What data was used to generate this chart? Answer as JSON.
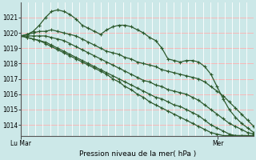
{
  "title": "Pression niveau de la mer( hPa )",
  "bg_color": "#cce8e8",
  "plot_bg": "#cce8e8",
  "grid_color_v": "#ffffff",
  "grid_color_h": "#ffb0b0",
  "line_color": "#2d5a2d",
  "ylim": [
    1013.3,
    1022.0
  ],
  "yticks": [
    1014,
    1015,
    1016,
    1017,
    1018,
    1019,
    1020,
    1021
  ],
  "xlabel_left": "Lu Mar",
  "xlabel_right": "Mer",
  "series": [
    [
      1019.8,
      1019.9,
      1020.1,
      1020.5,
      1021.0,
      1021.4,
      1021.5,
      1021.4,
      1021.2,
      1020.9,
      1020.5,
      1020.3,
      1020.1,
      1019.9,
      1020.2,
      1020.4,
      1020.5,
      1020.5,
      1020.4,
      1020.2,
      1020.0,
      1019.7,
      1019.5,
      1019.0,
      1018.3,
      1018.2,
      1018.1,
      1018.2,
      1018.2,
      1018.1,
      1017.8,
      1017.3,
      1016.5,
      1015.7,
      1015.0,
      1014.5,
      1014.1,
      1013.8,
      1013.5
    ],
    [
      1019.8,
      1019.9,
      1020.0,
      1020.1,
      1020.1,
      1020.2,
      1020.1,
      1020.0,
      1019.9,
      1019.8,
      1019.6,
      1019.4,
      1019.2,
      1019.0,
      1018.8,
      1018.7,
      1018.6,
      1018.4,
      1018.3,
      1018.1,
      1018.0,
      1017.9,
      1017.8,
      1017.6,
      1017.5,
      1017.4,
      1017.3,
      1017.2,
      1017.1,
      1017.0,
      1016.8,
      1016.5,
      1016.2,
      1015.9,
      1015.5,
      1015.1,
      1014.7,
      1014.3,
      1013.9
    ],
    [
      1019.8,
      1019.8,
      1019.8,
      1019.8,
      1019.8,
      1019.7,
      1019.6,
      1019.5,
      1019.3,
      1019.1,
      1018.9,
      1018.7,
      1018.5,
      1018.3,
      1018.1,
      1017.9,
      1017.7,
      1017.5,
      1017.3,
      1017.1,
      1016.9,
      1016.8,
      1016.6,
      1016.5,
      1016.3,
      1016.2,
      1016.1,
      1016.0,
      1015.8,
      1015.6,
      1015.3,
      1015.0,
      1014.7,
      1014.4,
      1014.1,
      1013.9,
      1013.7,
      1013.5,
      1013.4
    ],
    [
      1019.8,
      1019.7,
      1019.6,
      1019.5,
      1019.4,
      1019.2,
      1019.0,
      1018.8,
      1018.6,
      1018.4,
      1018.2,
      1018.0,
      1017.8,
      1017.6,
      1017.4,
      1017.2,
      1017.0,
      1016.8,
      1016.6,
      1016.4,
      1016.2,
      1016.0,
      1015.8,
      1015.7,
      1015.5,
      1015.3,
      1015.2,
      1015.0,
      1014.8,
      1014.6,
      1014.3,
      1014.0,
      1013.8,
      1013.6,
      1013.4,
      1013.3,
      1013.3,
      1013.3,
      1013.3
    ],
    [
      1019.8,
      1019.7,
      1019.6,
      1019.5,
      1019.3,
      1019.1,
      1018.9,
      1018.7,
      1018.5,
      1018.3,
      1018.1,
      1017.9,
      1017.7,
      1017.5,
      1017.3,
      1017.0,
      1016.8,
      1016.5,
      1016.3,
      1016.0,
      1015.8,
      1015.5,
      1015.3,
      1015.1,
      1014.9,
      1014.7,
      1014.5,
      1014.3,
      1014.1,
      1013.9,
      1013.7,
      1013.5,
      1013.4,
      1013.3,
      1013.3,
      1013.3,
      1013.3,
      1013.3,
      1013.3
    ]
  ]
}
